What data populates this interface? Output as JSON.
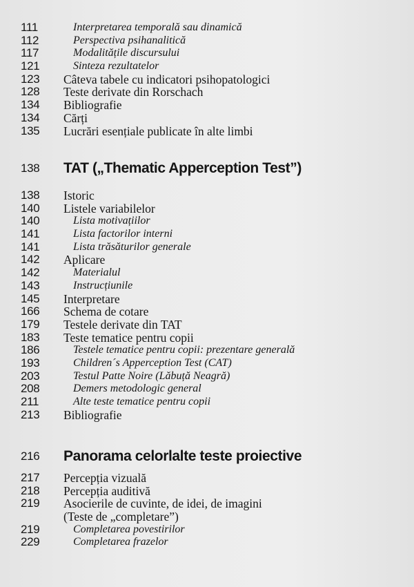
{
  "sections": [
    {
      "heading": null,
      "entries": [
        {
          "page": "111",
          "title": "Interpretarea temporală sau dinamică",
          "level": 2
        },
        {
          "page": "112",
          "title": "Perspectiva psihanalitică",
          "level": 2
        },
        {
          "page": "117",
          "title": "Modalitățile discursului",
          "level": 2
        },
        {
          "page": "121",
          "title": "Sinteza rezultatelor",
          "level": 2
        },
        {
          "page": "123",
          "title": "Câteva tabele cu indicatori psihopatologici",
          "level": 1
        },
        {
          "page": "128",
          "title": "Teste derivate din Rorschach",
          "level": 1
        },
        {
          "page": "134",
          "title": "Bibliografie",
          "level": 1
        },
        {
          "page": "134",
          "title": "Cărți",
          "level": 1
        },
        {
          "page": "135",
          "title": "Lucrări esențiale publicate în alte limbi",
          "level": 1
        }
      ]
    },
    {
      "heading": {
        "page": "138",
        "title": "TAT („Thematic Apperception Test”)"
      },
      "entries": [
        {
          "page": "138",
          "title": "Istoric",
          "level": 1
        },
        {
          "page": "140",
          "title": "Listele variabilelor",
          "level": 1
        },
        {
          "page": "140",
          "title": "Lista motivațiilor",
          "level": 2
        },
        {
          "page": "141",
          "title": "Lista factorilor interni",
          "level": 2
        },
        {
          "page": "141",
          "title": "Lista trăsăturilor generale",
          "level": 2
        },
        {
          "page": "142",
          "title": "Aplicare",
          "level": 1
        },
        {
          "page": "142",
          "title": "Materialul",
          "level": 2
        },
        {
          "page": "143",
          "title": "Instrucțiunile",
          "level": 2
        },
        {
          "page": "145",
          "title": "Interpretare",
          "level": 1
        },
        {
          "page": "166",
          "title": "Schema de cotare",
          "level": 1
        },
        {
          "page": "179",
          "title": "Testele derivate din TAT",
          "level": 1
        },
        {
          "page": "183",
          "title": "Teste tematice pentru copii",
          "level": 1
        },
        {
          "page": "186",
          "title": "Testele tematice pentru copii: prezentare generală",
          "level": 2
        },
        {
          "page": "193",
          "title": "Children´s Apperception Test (CAT)",
          "level": 2
        },
        {
          "page": "203",
          "title": "Testul Patte Noire (Lăbuță Neagră)",
          "level": 2
        },
        {
          "page": "208",
          "title": "Demers metodologic general",
          "level": 2
        },
        {
          "page": "211",
          "title": "Alte teste tematice pentru copii",
          "level": 2
        },
        {
          "page": "213",
          "title": "Bibliografie",
          "level": 1
        }
      ]
    },
    {
      "heading": {
        "page": "216",
        "title": "Panorama celorlalte teste proiective"
      },
      "entries": [
        {
          "page": "217",
          "title": "Percepția vizuală",
          "level": 1
        },
        {
          "page": "218",
          "title": "Percepția auditivă",
          "level": 1
        },
        {
          "page": "219",
          "title": "Asocierile de cuvinte, de idei, de imagini",
          "level": 1
        },
        {
          "page": "",
          "title": "(Teste de „completare”)",
          "level": 1
        },
        {
          "page": "219",
          "title": "Completarea povestirilor",
          "level": 2
        },
        {
          "page": "229",
          "title": "Completarea frazelor",
          "level": 2
        }
      ]
    }
  ]
}
